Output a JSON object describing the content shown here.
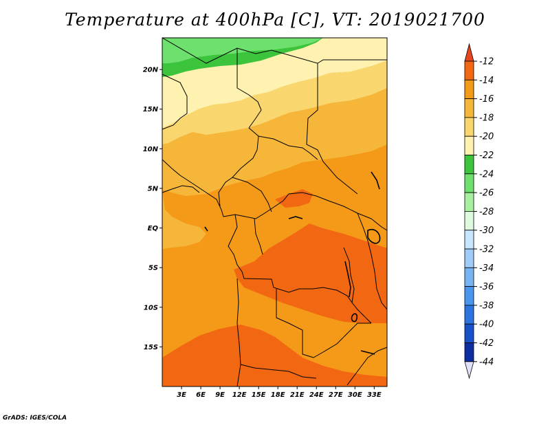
{
  "title": "Temperature at 400hPa [C], VT: 2019021700",
  "footer": "GrADS: IGES/COLA",
  "map": {
    "lon_range": [
      0,
      35
    ],
    "lat_range": [
      -20,
      24
    ],
    "lat_ticks": [
      {
        "value": 20,
        "label": "20N"
      },
      {
        "value": 15,
        "label": "15N"
      },
      {
        "value": 10,
        "label": "10N"
      },
      {
        "value": 5,
        "label": "5N"
      },
      {
        "value": 0,
        "label": "EQ"
      },
      {
        "value": -5,
        "label": "5S"
      },
      {
        "value": -10,
        "label": "10S"
      },
      {
        "value": -15,
        "label": "15S"
      }
    ],
    "lon_ticks": [
      {
        "value": 3,
        "label": "3E"
      },
      {
        "value": 6,
        "label": "6E"
      },
      {
        "value": 9,
        "label": "9E"
      },
      {
        "value": 12,
        "label": "12E"
      },
      {
        "value": 15,
        "label": "15E"
      },
      {
        "value": 18,
        "label": "18E"
      },
      {
        "value": 21,
        "label": "21E"
      },
      {
        "value": 24,
        "label": "24E"
      },
      {
        "value": 27,
        "label": "27E"
      },
      {
        "value": 30,
        "label": "30E"
      },
      {
        "value": 33,
        "label": "33E"
      }
    ]
  },
  "colorbar": {
    "levels": [
      "-12",
      "-14",
      "-16",
      "-18",
      "-20",
      "-22",
      "-24",
      "-26",
      "-28",
      "-30",
      "-32",
      "-34",
      "-36",
      "-38",
      "-40",
      "-42",
      "-44"
    ],
    "top_color": "#e8461e",
    "bottom_color": "#e0e0f8",
    "colors": [
      "#f26812",
      "#f49a18",
      "#f6b63a",
      "#fad66e",
      "#fff2b0",
      "#3cc43c",
      "#6ee06e",
      "#a8f0a0",
      "#e0fae0",
      "#c8e6ff",
      "#a0ccf8",
      "#78b4f4",
      "#4a96ee",
      "#2c74e0",
      "#1852c8",
      "#0c2ea0",
      "#0a0a70"
    ]
  },
  "colors": {
    "t_12_14": "#f26812",
    "t_14_16": "#f49a18",
    "t_16_18": "#f6b63a",
    "t_18_20": "#fad66e",
    "t_20_22": "#fff2b0",
    "t_22_24": "#3cc43c",
    "t_24_26": "#6ee06e"
  }
}
